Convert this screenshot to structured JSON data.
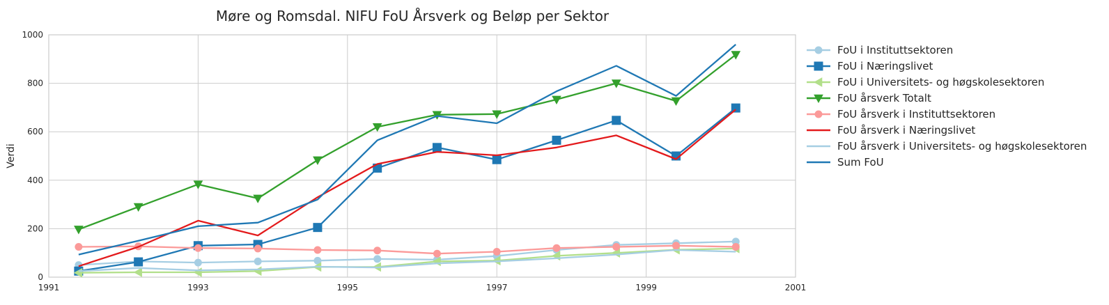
{
  "chart_data": {
    "type": "line",
    "title": "Møre og Romsdal. NIFU FoU Årsverk og Beløp per Sektor",
    "xlabel": "",
    "ylabel": "Verdi",
    "xlim": [
      1991,
      2001
    ],
    "ylim": [
      0,
      1000
    ],
    "x_ticks": [
      1991,
      1993,
      1995,
      1997,
      1999,
      2001
    ],
    "y_ticks": [
      0,
      200,
      400,
      600,
      800,
      1000
    ],
    "grid": true,
    "legend_position": "outside-right",
    "x": [
      1991.4,
      1992.2,
      1993.0,
      1993.8,
      1994.6,
      1995.4,
      1996.2,
      1997.0,
      1997.8,
      1998.6,
      1999.4,
      2000.2
    ],
    "series": [
      {
        "name": "FoU i Instituttsektoren",
        "color": "#a6cee3",
        "marker": "circle",
        "values": [
          50,
          65,
          60,
          65,
          68,
          75,
          72,
          87,
          112,
          133,
          140,
          147
        ]
      },
      {
        "name": "FoU i Næringslivet",
        "color": "#1f78b4",
        "marker": "square",
        "values": [
          25,
          63,
          130,
          135,
          205,
          450,
          535,
          485,
          565,
          647,
          500,
          698
        ]
      },
      {
        "name": "FoU i Universitets- og høgskolesektoren",
        "color": "#b2df8a",
        "marker": "triangle-left",
        "values": [
          18,
          20,
          20,
          25,
          42,
          42,
          65,
          68,
          88,
          100,
          113,
          118
        ]
      },
      {
        "name": "FoU årsverk Totalt",
        "color": "#33a02c",
        "marker": "triangle-down",
        "values": [
          197,
          290,
          383,
          325,
          483,
          620,
          670,
          673,
          733,
          800,
          727,
          918
        ]
      },
      {
        "name": "FoU årsverk i Instituttsektoren",
        "color": "#fb9a99",
        "marker": "circle",
        "values": [
          125,
          127,
          120,
          118,
          112,
          110,
          97,
          105,
          120,
          125,
          130,
          125
        ]
      },
      {
        "name": "FoU årsverk i Næringslivet",
        "color": "#e31a1c",
        "marker": "none",
        "values": [
          45,
          125,
          233,
          172,
          330,
          467,
          517,
          503,
          535,
          585,
          487,
          692
        ]
      },
      {
        "name": "FoU årsverk i Universitets- og høgskolesektoren",
        "color": "#a6cee3",
        "marker": "none",
        "values": [
          25,
          38,
          28,
          32,
          43,
          40,
          57,
          65,
          78,
          93,
          112,
          105
        ]
      },
      {
        "name": "Sum FoU",
        "color": "#1f78b4",
        "marker": "none",
        "values": [
          93,
          150,
          210,
          225,
          320,
          565,
          665,
          635,
          767,
          872,
          748,
          960
        ]
      }
    ]
  }
}
